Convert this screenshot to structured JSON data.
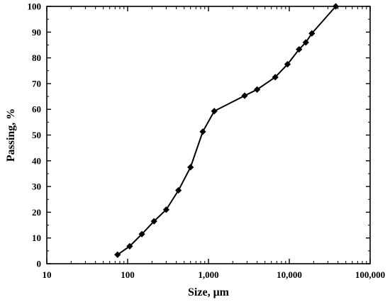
{
  "chart_data": {
    "type": "scatter",
    "title": "",
    "xlabel": "Size, μm",
    "ylabel": "Passing, %",
    "x_scale": "log",
    "xlim": [
      10,
      100000
    ],
    "ylim": [
      0,
      100
    ],
    "x_ticks": [
      10,
      100,
      1000,
      10000,
      100000
    ],
    "x_tick_labels": [
      "10",
      "100",
      "1,000",
      "10,000",
      "100,000"
    ],
    "y_ticks": [
      0,
      10,
      20,
      30,
      40,
      50,
      60,
      70,
      80,
      90,
      100
    ],
    "y_tick_labels": [
      "0",
      "10",
      "20",
      "30",
      "40",
      "50",
      "60",
      "70",
      "80",
      "90",
      "100"
    ],
    "grid": false,
    "legend": "none",
    "marker": "diamond",
    "line": true,
    "color": "#000000",
    "series": [
      {
        "points": [
          {
            "x": 75,
            "y": 3.5
          },
          {
            "x": 106,
            "y": 6.8
          },
          {
            "x": 150,
            "y": 11.5
          },
          {
            "x": 212,
            "y": 16.5
          },
          {
            "x": 300,
            "y": 21
          },
          {
            "x": 425,
            "y": 28.5
          },
          {
            "x": 600,
            "y": 37.5
          },
          {
            "x": 850,
            "y": 51.3
          },
          {
            "x": 1180,
            "y": 59.3
          },
          {
            "x": 2800,
            "y": 65.3
          },
          {
            "x": 4000,
            "y": 67.7
          },
          {
            "x": 6700,
            "y": 72.5
          },
          {
            "x": 9500,
            "y": 77.5
          },
          {
            "x": 13200,
            "y": 83.3
          },
          {
            "x": 16000,
            "y": 86
          },
          {
            "x": 19000,
            "y": 89.5
          },
          {
            "x": 37500,
            "y": 100
          }
        ]
      }
    ]
  }
}
